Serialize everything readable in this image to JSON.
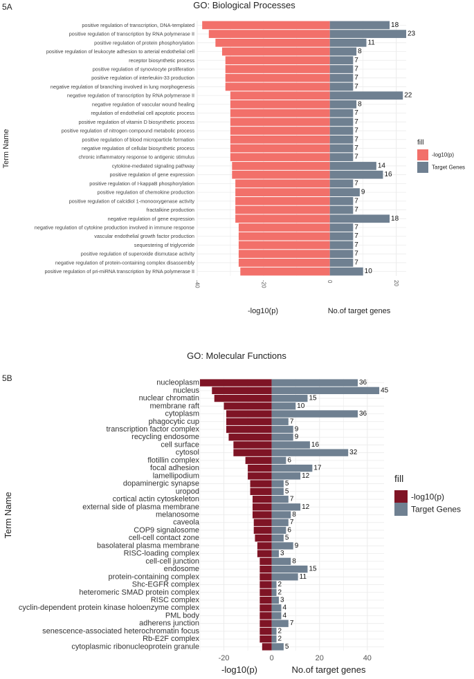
{
  "chart_data": [
    {
      "type": "bar",
      "panel_label": "5A",
      "title": "GO: Biological Processes",
      "ylabel": "Term Name",
      "xlabel_left": "-log10(p)",
      "xlabel_right": "No.of target genes",
      "xlim": [
        -40,
        23
      ],
      "xticks": [
        -40,
        -20,
        0,
        20
      ],
      "xtick_labels": [
        "-40",
        "-20",
        "0",
        "20"
      ],
      "legend_title": "fill",
      "legend": [
        {
          "label": "-log10(p)",
          "color": "#F2706A"
        },
        {
          "label": "Target Genes",
          "color": "#6F8091"
        }
      ],
      "categories": [
        "positive regulation of transcription, DNA-templated",
        "positive regulation of transcription by RNA polymerase II",
        "positive regulation of protein phosphorylation",
        "positive regulation of leukocyte adhesion to arterial endothelial cell",
        "receptor biosynthetic process",
        "positive regulation of synoviocyte proliferation",
        "positive regulation of interleukin-33 production",
        "negative regulation of branching involved in lung morphogenesis",
        "negative regulation of transcription by RNA polymerase II",
        "negative regulation of vascular wound healing",
        "regulation of endothelial cell apoptotic process",
        "positive regulation of vitamin D biosynthetic process",
        "positive regulation of nitrogen compound metabolic process",
        "positive regulation of blood microparticle formation",
        "negative regulation of cellular biosynthetic process",
        "chronic inflammatory response to antigenic stimulus",
        "cytokine-mediated signaling pathway",
        "positive regulation of gene expression",
        "positive regulation of I-kappaB phosphorylation",
        "positive regulation of chemokine production",
        "positive regulation of calcidiol 1-monooxygenase activity",
        "fractalkine production",
        "negative regulation of gene expression",
        "negative regulation of cytokine production involved in immune response",
        "vascular endothelial growth factor production",
        "sequestering of triglyceride",
        "positive regulation of superoxide dismutase activity",
        "negative regulation of protein-containing complex disassembly",
        "positive regulation of pri-miRNA transcription by RNA polymerase II"
      ],
      "series": [
        {
          "name": "-log10(p)",
          "values": [
            -38.5,
            -36.5,
            -34.5,
            -32.5,
            -31.5,
            -31.5,
            -31.5,
            -31.5,
            -30,
            -30,
            -30,
            -30,
            -30,
            -30,
            -30,
            -30,
            -29.5,
            -29.5,
            -28.5,
            -28.5,
            -28.5,
            -28.5,
            -28.5,
            -27.5,
            -27.5,
            -27.5,
            -27.5,
            -27.5,
            -27
          ]
        },
        {
          "name": "Target Genes",
          "values": [
            18,
            23,
            11,
            8,
            7,
            7,
            7,
            7,
            22,
            8,
            7,
            7,
            7,
            7,
            7,
            7,
            14,
            16,
            7,
            9,
            7,
            7,
            18,
            7,
            7,
            7,
            7,
            7,
            10
          ]
        }
      ]
    },
    {
      "type": "bar",
      "panel_label": "5B",
      "title": "GO: Molecular Functions",
      "ylabel": "Term Name",
      "xlabel_left": "-log10(p)",
      "xlabel_right": "No.of target genes",
      "xlim": [
        -30,
        47
      ],
      "xticks": [
        -20,
        0,
        20,
        40
      ],
      "xtick_labels": [
        "-20",
        "0",
        "20",
        "40"
      ],
      "legend_title": "fill",
      "legend": [
        {
          "label": "-log10(p)",
          "color": "#7F1425"
        },
        {
          "label": "Target Genes",
          "color": "#6F8091"
        }
      ],
      "categories": [
        "nucleoplasm",
        "nucleus",
        "nuclear chromatin",
        "membrane raft",
        "cytoplasm",
        "phagocytic cup",
        "transcription factor complex",
        "recycling endosome",
        "cell surface",
        "cytosol",
        "flotillin complex",
        "focal adhesion",
        "lamellipodium",
        "dopaminergic synapse",
        "uropod",
        "cortical actin cytoskeleton",
        "external side of plasma membrane",
        "melanosome",
        "caveola",
        "COP9 signalosome",
        "cell-cell contact zone",
        "basolateral plasma membrane",
        "RISC-loading complex",
        "cell-cell junction",
        "endosome",
        "protein-containing complex",
        "Shc-EGFR complex",
        "heteromeric SMAD protein complex",
        "RISC complex",
        "cyclin-dependent protein kinase holoenzyme complex",
        "PML body",
        "adherens junction",
        "senescence-associated heterochromatin focus",
        "Rb-E2F complex",
        "cytoplasmic ribonucleoprotein granule"
      ],
      "series": [
        {
          "name": "-log10(p)",
          "values": [
            -30,
            -25,
            -24,
            -20,
            -19,
            -19,
            -19,
            -18,
            -16,
            -16,
            -11,
            -10,
            -10,
            -9,
            -9,
            -8,
            -8,
            -8,
            -7.5,
            -7.5,
            -7,
            -6,
            -6,
            -5,
            -5,
            -5,
            -5,
            -5,
            -5,
            -5,
            -5,
            -5,
            -5,
            -5,
            -4
          ]
        },
        {
          "name": "Target Genes",
          "values": [
            36,
            45,
            15,
            10,
            36,
            7,
            9,
            9,
            16,
            32,
            6,
            17,
            12,
            5,
            5,
            7,
            12,
            8,
            7,
            6,
            5,
            9,
            3,
            8,
            15,
            11,
            2,
            2,
            3,
            4,
            4,
            7,
            2,
            2,
            5
          ]
        }
      ]
    }
  ]
}
